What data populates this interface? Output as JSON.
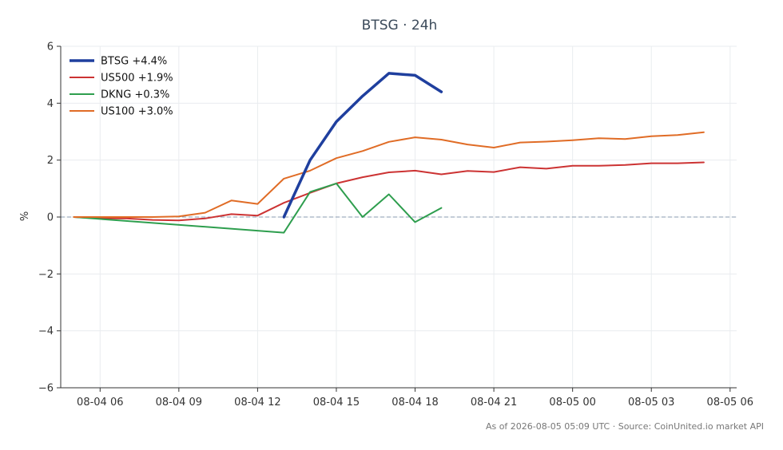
{
  "chart_data": {
    "type": "line",
    "title": "BTSG · 24h",
    "ylabel": "%",
    "xlabel": "",
    "ylim": [
      -6,
      6
    ],
    "xlim": [
      "2026-08-04 04:30",
      "2026-08-05 06:15"
    ],
    "yticks": [
      -6,
      -4,
      -2,
      0,
      2,
      4,
      6
    ],
    "ytick_labels": [
      "−6",
      "−4",
      "−2",
      "0",
      "2",
      "4",
      "6"
    ],
    "xticks": [
      "2026-08-04 06:00",
      "2026-08-04 09:00",
      "2026-08-04 12:00",
      "2026-08-04 15:00",
      "2026-08-04 18:00",
      "2026-08-04 21:00",
      "2026-08-05 00:00",
      "2026-08-05 03:00",
      "2026-08-05 06:00"
    ],
    "xtick_labels": [
      "08-04 06",
      "08-04 09",
      "08-04 12",
      "08-04 15",
      "08-04 18",
      "08-04 21",
      "08-05 00",
      "08-05 03",
      "08-05 06"
    ],
    "grid": true,
    "zero_line": true,
    "legend_position": "top-left",
    "series": [
      {
        "name": "BTSG +4.4%",
        "color": "#1f3f9e",
        "line_width": "thick",
        "points": [
          [
            "2026-08-04 13:00",
            0.0
          ],
          [
            "2026-08-04 14:00",
            2.0
          ],
          [
            "2026-08-04 15:00",
            3.35
          ],
          [
            "2026-08-04 16:00",
            4.25
          ],
          [
            "2026-08-04 17:00",
            5.05
          ],
          [
            "2026-08-04 18:00",
            4.98
          ],
          [
            "2026-08-04 19:00",
            4.4
          ]
        ]
      },
      {
        "name": "US500 +1.9%",
        "color": "#cc3333",
        "line_width": "normal",
        "points": [
          [
            "2026-08-04 05:00",
            0.0
          ],
          [
            "2026-08-04 06:00",
            -0.05
          ],
          [
            "2026-08-04 07:00",
            -0.05
          ],
          [
            "2026-08-04 08:00",
            -0.1
          ],
          [
            "2026-08-04 09:00",
            -0.12
          ],
          [
            "2026-08-04 10:00",
            -0.05
          ],
          [
            "2026-08-04 11:00",
            0.1
          ],
          [
            "2026-08-04 12:00",
            0.05
          ],
          [
            "2026-08-04 13:00",
            0.5
          ],
          [
            "2026-08-04 14:00",
            0.85
          ],
          [
            "2026-08-04 15:00",
            1.18
          ],
          [
            "2026-08-04 16:00",
            1.4
          ],
          [
            "2026-08-04 17:00",
            1.57
          ],
          [
            "2026-08-04 18:00",
            1.63
          ],
          [
            "2026-08-04 19:00",
            1.5
          ],
          [
            "2026-08-04 20:00",
            1.62
          ],
          [
            "2026-08-04 21:00",
            1.58
          ],
          [
            "2026-08-04 22:00",
            1.75
          ],
          [
            "2026-08-04 23:00",
            1.7
          ],
          [
            "2026-08-05 00:00",
            1.8
          ],
          [
            "2026-08-05 01:00",
            1.8
          ],
          [
            "2026-08-05 02:00",
            1.83
          ],
          [
            "2026-08-05 03:00",
            1.89
          ],
          [
            "2026-08-05 04:00",
            1.89
          ],
          [
            "2026-08-05 05:00",
            1.92
          ]
        ]
      },
      {
        "name": "DKNG +0.3%",
        "color": "#2e9e4e",
        "line_width": "normal",
        "points": [
          [
            "2026-08-04 05:00",
            0.0
          ],
          [
            "2026-08-04 13:00",
            -0.55
          ],
          [
            "2026-08-04 14:00",
            0.88
          ],
          [
            "2026-08-04 15:00",
            1.18
          ],
          [
            "2026-08-04 16:00",
            0.0
          ],
          [
            "2026-08-04 17:00",
            0.8
          ],
          [
            "2026-08-04 18:00",
            -0.18
          ],
          [
            "2026-08-04 19:00",
            0.32
          ]
        ]
      },
      {
        "name": "US100 +3.0%",
        "color": "#e06c26",
        "line_width": "normal",
        "points": [
          [
            "2026-08-04 05:00",
            0.0
          ],
          [
            "2026-08-04 06:00",
            0.0
          ],
          [
            "2026-08-04 07:00",
            0.0
          ],
          [
            "2026-08-04 08:00",
            0.0
          ],
          [
            "2026-08-04 09:00",
            0.02
          ],
          [
            "2026-08-04 10:00",
            0.15
          ],
          [
            "2026-08-04 11:00",
            0.58
          ],
          [
            "2026-08-04 12:00",
            0.46
          ],
          [
            "2026-08-04 13:00",
            1.35
          ],
          [
            "2026-08-04 14:00",
            1.63
          ],
          [
            "2026-08-04 15:00",
            2.07
          ],
          [
            "2026-08-04 16:00",
            2.32
          ],
          [
            "2026-08-04 17:00",
            2.64
          ],
          [
            "2026-08-04 18:00",
            2.8
          ],
          [
            "2026-08-04 19:00",
            2.72
          ],
          [
            "2026-08-04 20:00",
            2.55
          ],
          [
            "2026-08-04 21:00",
            2.44
          ],
          [
            "2026-08-04 22:00",
            2.62
          ],
          [
            "2026-08-04 23:00",
            2.65
          ],
          [
            "2026-08-05 00:00",
            2.7
          ],
          [
            "2026-08-05 01:00",
            2.77
          ],
          [
            "2026-08-05 02:00",
            2.74
          ],
          [
            "2026-08-05 03:00",
            2.84
          ],
          [
            "2026-08-05 04:00",
            2.88
          ],
          [
            "2026-08-05 05:00",
            2.98
          ]
        ]
      }
    ],
    "footer": "As of 2026-08-05 05:09 UTC · Source: CoinUnited.io market API"
  }
}
